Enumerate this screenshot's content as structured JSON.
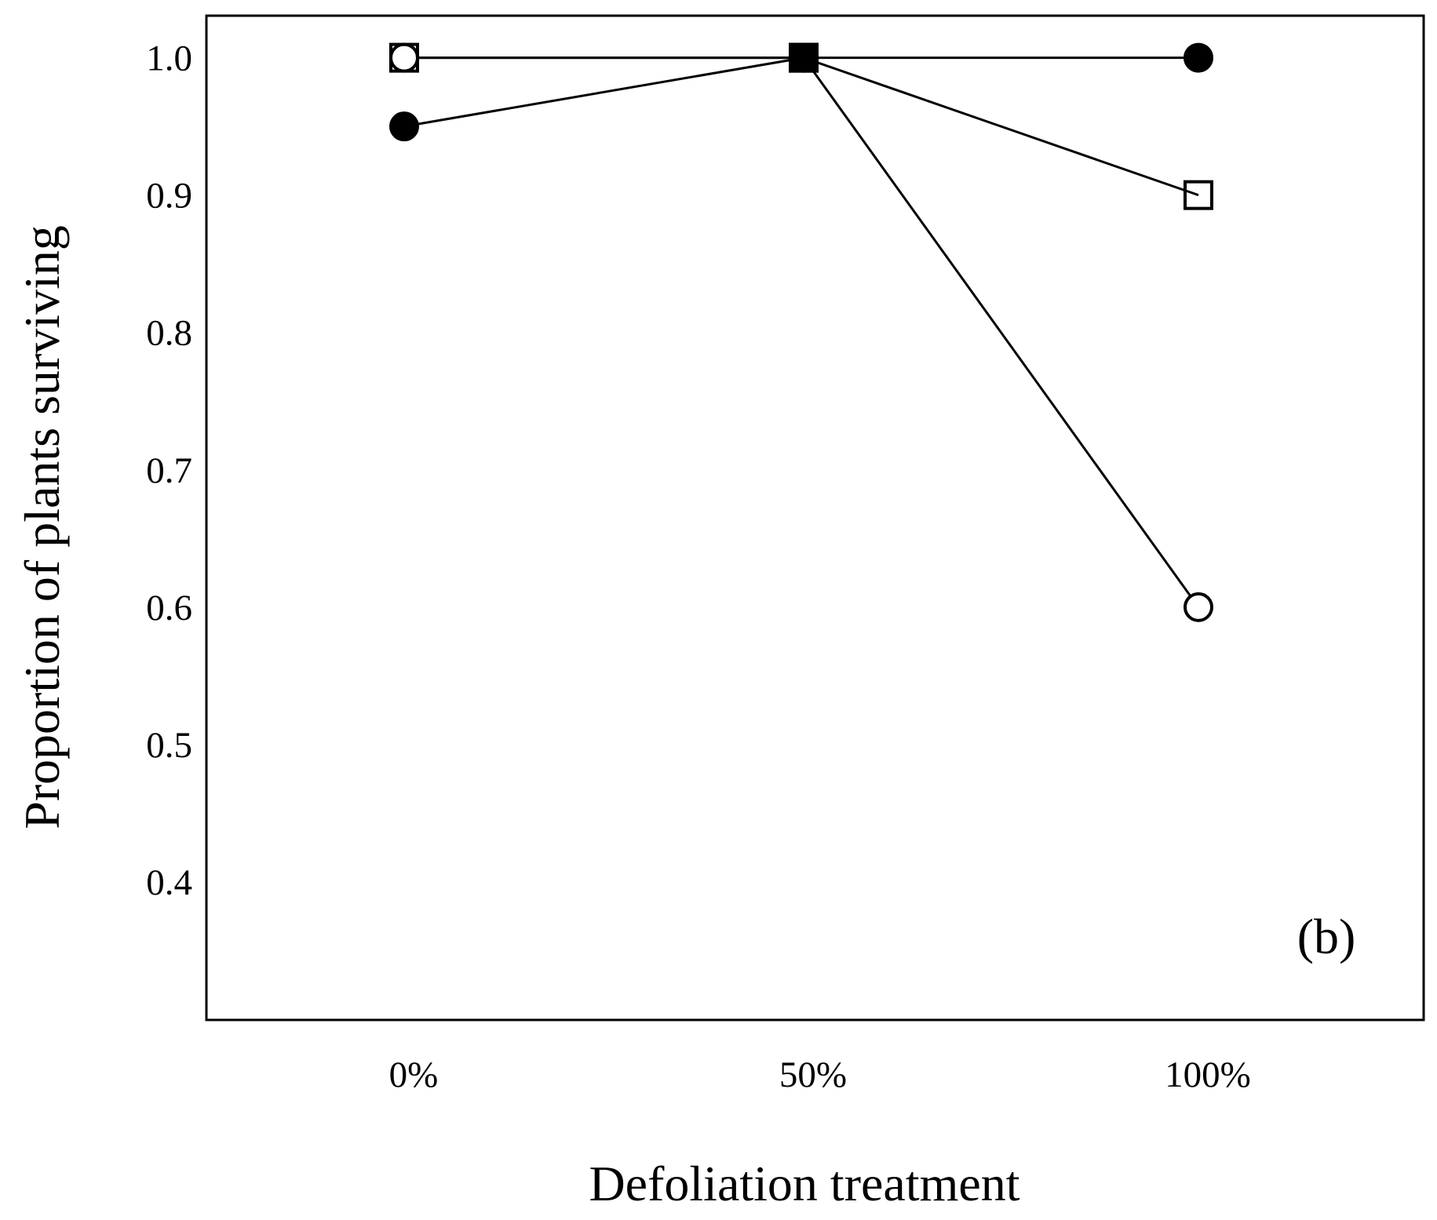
{
  "chart_data": {
    "type": "line",
    "categories": [
      "0%",
      "50%",
      "100%"
    ],
    "xlabel": "Defoliation treatment",
    "ylabel": "Proportion of plants surviving",
    "yticks": [
      "0.4",
      "0.5",
      "0.6",
      "0.7",
      "0.8",
      "0.9",
      "1.0"
    ],
    "ylim": [
      0.3,
      1.03
    ],
    "grid": false,
    "panel_label": "(b)",
    "series": [
      {
        "marker": "filled-circle",
        "values": [
          0.95,
          1.0,
          1.0
        ]
      },
      {
        "marker": "open-circle",
        "values": [
          1.0,
          1.0,
          0.6
        ]
      },
      {
        "marker": "open-square",
        "values": [
          1.0,
          1.0,
          0.9
        ]
      },
      {
        "marker": "filled-square",
        "values": [
          null,
          1.0,
          null
        ]
      }
    ],
    "colors": {
      "line": "#000000",
      "background": "#ffffff"
    }
  }
}
